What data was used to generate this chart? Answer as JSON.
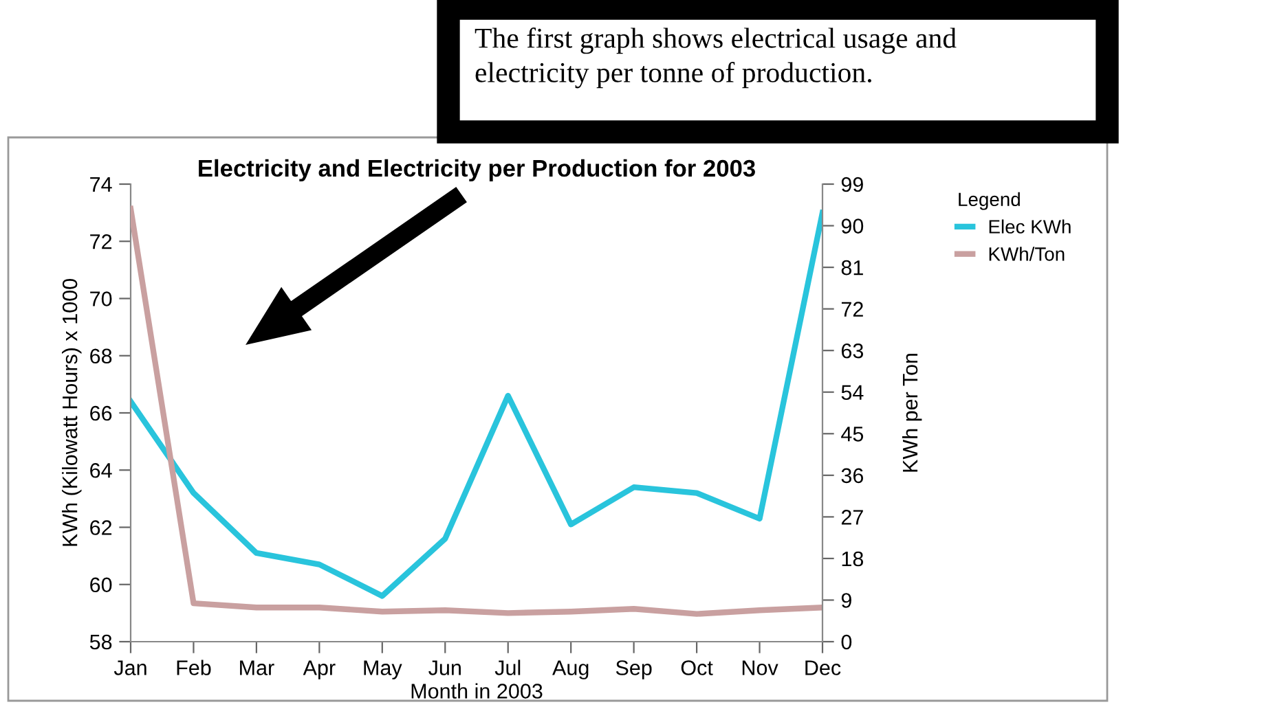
{
  "chart_data": {
    "type": "line",
    "title": "Electricity and Electricity per Production for 2003",
    "xlabel": "Month in 2003",
    "ylabel": "KWh (Kilowatt Hours) x 1000",
    "y2label": "KWh per Ton",
    "legend_title": "Legend",
    "annotations": [
      "The first graph shows electrical usage and\nelectricity per tonne of production."
    ],
    "categories": [
      "Jan",
      "Feb",
      "Mar",
      "Apr",
      "May",
      "Jun",
      "Jul",
      "Aug",
      "Sep",
      "Oct",
      "Nov",
      "Dec"
    ],
    "series": [
      {
        "name": "Elec KWh",
        "color": "#29c4dc",
        "values": [
          66.4,
          63.2,
          61.1,
          60.7,
          59.6,
          61.6,
          66.6,
          62.1,
          63.4,
          63.2,
          62.3,
          73.0
        ]
      },
      {
        "name": "KWh/Ton",
        "color": "#c9a0a0",
        "axis": "y2",
        "values": [
          93.7,
          8.3,
          7.4,
          7.4,
          6.5,
          6.8,
          6.2,
          6.5,
          7.1,
          6.0,
          6.8,
          7.4
        ]
      }
    ],
    "ylim": [
      58,
      74
    ],
    "yticks": [
      58,
      60,
      62,
      64,
      66,
      68,
      70,
      72,
      74
    ],
    "y2lim": [
      0,
      99
    ],
    "y2ticks": [
      0,
      9,
      18,
      27,
      36,
      45,
      54,
      63,
      72,
      81,
      90,
      99
    ],
    "grid": false,
    "legend": "top right",
    "marker": "none",
    "line_style": "solid"
  }
}
